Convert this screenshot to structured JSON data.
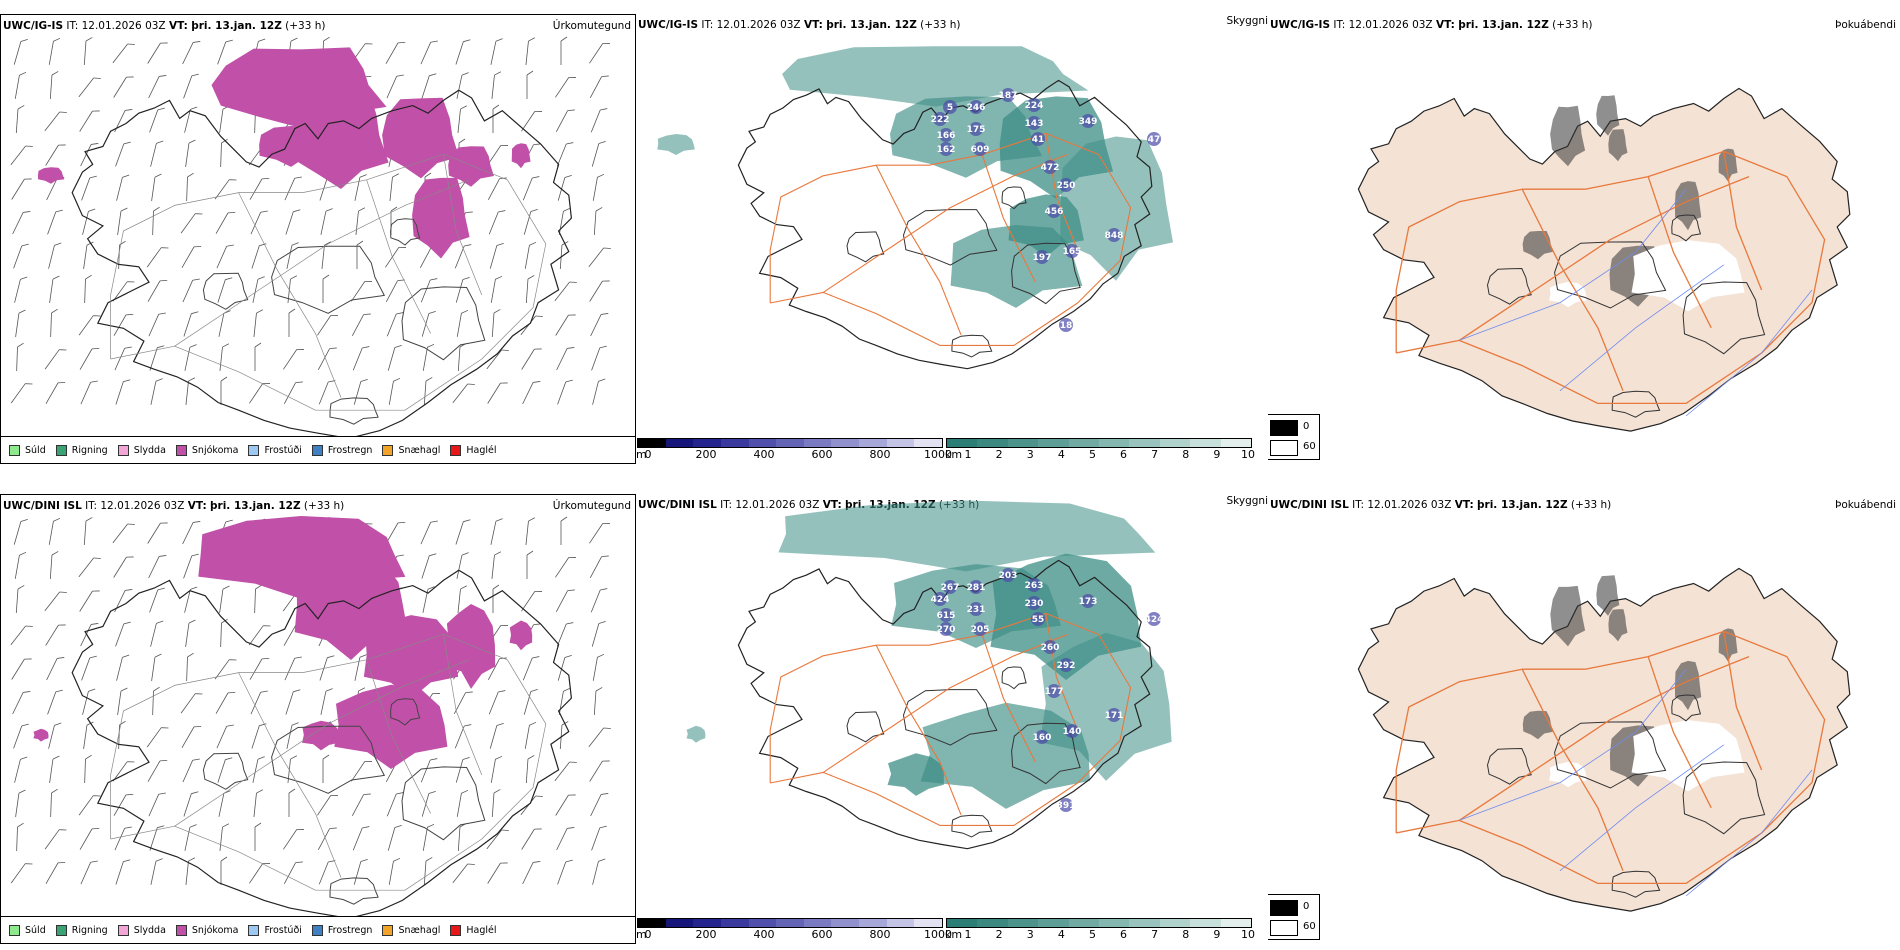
{
  "rows": [
    {
      "model": "UWC/IG-IS",
      "it_label": "IT:",
      "it_value": "12.01.2026 03Z",
      "vt_label": "VT:",
      "vt_value": "þri. 13.jan. 12Z",
      "lead": "(+33 h)",
      "numbers": [
        "5",
        "246",
        "187",
        "224",
        "222",
        "175",
        "143",
        "166",
        "41",
        "162",
        "609",
        "349",
        "47",
        "472",
        "250",
        "456",
        "197",
        "165",
        "848",
        "18"
      ]
    },
    {
      "model": "UWC/DINI ISL",
      "it_label": "IT:",
      "it_value": "12.01.2026 03Z",
      "vt_label": "VT:",
      "vt_value": "þri. 13.jan. 12Z",
      "lead": "(+33 h)",
      "numbers": [
        "267",
        "281",
        "203",
        "263",
        "424",
        "231",
        "230",
        "615",
        "55",
        "270",
        "205",
        "173",
        "424",
        "260",
        "292",
        "177",
        "160",
        "140",
        "171",
        "391"
      ]
    }
  ],
  "panel_titles": {
    "precip_type": "Úrkomutegund",
    "visibility": "Skyggni",
    "fog": "Þokuábendi"
  },
  "precip_legend": [
    {
      "label": "Súld",
      "color": "#8ee88e"
    },
    {
      "label": "Rigning",
      "color": "#3aa374"
    },
    {
      "label": "Slydda",
      "color": "#f2a6d8"
    },
    {
      "label": "Snjókoma",
      "color": "#c050a8"
    },
    {
      "label": "Frostúði",
      "color": "#9cc8f2"
    },
    {
      "label": "Frostregn",
      "color": "#3f7fc4"
    },
    {
      "label": "Snæhagl",
      "color": "#f2a32a"
    },
    {
      "label": "Haglél",
      "color": "#e8181a"
    }
  ],
  "height_scale": {
    "unit": "m",
    "ticks": [
      "0",
      "200",
      "400",
      "600",
      "800",
      "1000"
    ],
    "colors": [
      "#000000",
      "#16167a",
      "#24248e",
      "#3a3a9e",
      "#5050ac",
      "#6464b6",
      "#7a7ac2",
      "#9090cc",
      "#a8a8d8",
      "#c4c4e6",
      "#e2e2f2"
    ]
  },
  "visibility_scale": {
    "unit": "km",
    "ticks": [
      "1",
      "2",
      "3",
      "4",
      "5",
      "6",
      "7",
      "8",
      "9",
      "10"
    ],
    "colors": [
      "#2a7e76",
      "#3a8880",
      "#4b938b",
      "#5d9e96",
      "#70aaa2",
      "#84b7b0",
      "#99c4be",
      "#b0d2cd",
      "#c8e0dc",
      "#e2efed"
    ]
  },
  "fog_scale": {
    "top": "0",
    "bottom": "60"
  },
  "colors": {
    "snow": "#c050a8",
    "land_fog": "#f4e2d4",
    "roads": "#e8783c",
    "vis_green": "#3e8e86",
    "coast": "#222222"
  }
}
